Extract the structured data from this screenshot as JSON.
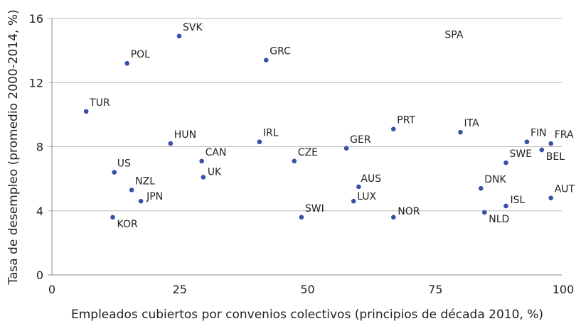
{
  "chart_data": {
    "type": "scatter",
    "title": "",
    "xlabel": "Empleados cubiertos por convenios colectivos (principios de década 2010, %)",
    "ylabel": "Tasa de desempleo (promedio 2000-2014, %)",
    "xlim": [
      0,
      100
    ],
    "ylim": [
      0,
      16
    ],
    "xticks": [
      0,
      25,
      50,
      75,
      100
    ],
    "yticks": [
      0,
      4,
      8,
      12,
      16
    ],
    "grid": "horizontal",
    "point_color": "#3a4fa8",
    "points": [
      {
        "label": "SVK",
        "x": 24.9,
        "y": 14.9
      },
      {
        "label": "POL",
        "x": 14.7,
        "y": 13.2
      },
      {
        "label": "GRC",
        "x": 41.9,
        "y": 13.4
      },
      {
        "label": "SPA",
        "x": 78.5,
        "y": null
      },
      {
        "label": "TUR",
        "x": 6.7,
        "y": 10.2
      },
      {
        "label": "HUN",
        "x": 23.2,
        "y": 8.2
      },
      {
        "label": "IRL",
        "x": 40.6,
        "y": 8.3
      },
      {
        "label": "PRT",
        "x": 66.8,
        "y": 9.1
      },
      {
        "label": "ITA",
        "x": 79.9,
        "y": 8.9
      },
      {
        "label": "FIN",
        "x": 92.9,
        "y": 8.3
      },
      {
        "label": "FRA",
        "x": 97.6,
        "y": 8.2
      },
      {
        "label": "BEL",
        "x": 95.8,
        "y": 7.8
      },
      {
        "label": "SWE",
        "x": 88.8,
        "y": 7.0
      },
      {
        "label": "GER",
        "x": 57.6,
        "y": 7.9
      },
      {
        "label": "CZE",
        "x": 47.4,
        "y": 7.1
      },
      {
        "label": "CAN",
        "x": 29.3,
        "y": 7.1
      },
      {
        "label": "UK",
        "x": 29.6,
        "y": 6.1
      },
      {
        "label": "US",
        "x": 12.2,
        "y": 6.4
      },
      {
        "label": "NZL",
        "x": 15.6,
        "y": 5.3
      },
      {
        "label": "JPN",
        "x": 17.4,
        "y": 4.6
      },
      {
        "label": "KOR",
        "x": 11.9,
        "y": 3.6
      },
      {
        "label": "SWI",
        "x": 48.8,
        "y": 3.6
      },
      {
        "label": "AUS",
        "x": 60.0,
        "y": 5.5
      },
      {
        "label": "LUX",
        "x": 59.0,
        "y": 4.6
      },
      {
        "label": "NOR",
        "x": 66.8,
        "y": 3.6
      },
      {
        "label": "DNK",
        "x": 83.9,
        "y": 5.4
      },
      {
        "label": "ISL",
        "x": 88.8,
        "y": 4.3
      },
      {
        "label": "NLD",
        "x": 84.6,
        "y": 3.9
      },
      {
        "label": "AUT",
        "x": 97.6,
        "y": 4.8
      }
    ]
  }
}
